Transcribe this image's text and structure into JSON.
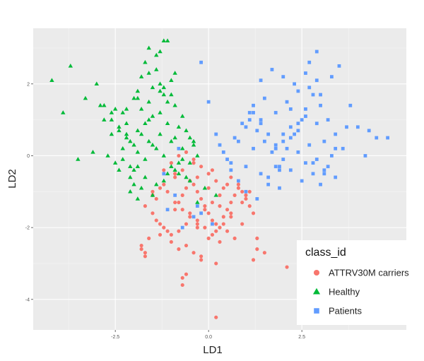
{
  "chart_data": {
    "type": "scatter",
    "xlabel": "LD1",
    "ylabel": "LD2",
    "xlim": [
      -4.7,
      5.3
    ],
    "ylim": [
      -4.85,
      3.55
    ],
    "xticks": [
      {
        "value": -2.5,
        "label": "-2.5"
      },
      {
        "value": 0,
        "label": "0.0"
      },
      {
        "value": 2.5,
        "label": "2.5"
      }
    ],
    "yticks": [
      {
        "value": -4,
        "label": "-4"
      },
      {
        "value": -2,
        "label": "-2"
      },
      {
        "value": 0,
        "label": "0"
      },
      {
        "value": 2,
        "label": "2"
      }
    ],
    "grid": true,
    "legend": {
      "title": "class_id",
      "position": "bottom-right"
    },
    "series": [
      {
        "name": "ATTRV30M carriers",
        "marker": "circle",
        "color": "#F8766D",
        "x": [
          -1.8,
          -1.7,
          -1.6,
          -1.7,
          -1.5,
          -1.4,
          -1.3,
          -1.2,
          -1.1,
          -1.0,
          -0.9,
          -0.8,
          -0.7,
          -0.6,
          -0.5,
          -0.4,
          -0.3,
          -0.2,
          -0.1,
          0.0,
          0.1,
          0.2,
          0.3,
          0.4,
          0.5,
          0.6,
          0.7,
          0.8,
          0.9,
          1.0,
          1.1,
          1.2,
          -1.2,
          -1.0,
          -0.8,
          -0.6,
          -0.4,
          -0.2,
          0.0,
          0.2,
          0.4,
          0.6,
          0.8,
          1.0,
          -1.4,
          -1.1,
          -0.9,
          -0.7,
          -0.5,
          -0.3,
          -0.1,
          0.1,
          0.3,
          0.5,
          0.7,
          0.9,
          -1.3,
          -1.0,
          -0.8,
          -0.6,
          -0.4,
          -0.2,
          0.0,
          0.2,
          0.4,
          0.6,
          -1.5,
          -1.2,
          -0.9,
          -0.7,
          -0.5,
          -0.3,
          -0.1,
          0.1,
          0.3,
          -0.8,
          -0.6,
          -0.3,
          0.0,
          0.3,
          0.6,
          -0.6,
          -0.2,
          0.2,
          1.3,
          1.5,
          1.3,
          1.2,
          2.1,
          -1.7,
          -1.8,
          -0.7,
          -0.7,
          -0.3,
          0.2,
          -1.5,
          -1.3,
          -0.9,
          -0.4,
          0.1,
          0.5,
          0.9,
          1.1
        ],
        "y": [
          -2.5,
          -2.7,
          -2.3,
          -1.4,
          -1.6,
          -1.8,
          -1.9,
          -2.0,
          -2.1,
          -2.2,
          -1.5,
          -1.3,
          -1.1,
          -0.9,
          -0.7,
          -0.8,
          -1.0,
          -1.2,
          -1.4,
          -1.6,
          -1.8,
          -1.9,
          -2.0,
          -1.7,
          -1.5,
          -1.3,
          -1.1,
          -0.9,
          -1.0,
          -1.2,
          -1.4,
          -1.6,
          -0.4,
          -0.2,
          0.0,
          0.1,
          -0.1,
          -0.3,
          -0.5,
          -0.7,
          -0.9,
          -0.6,
          -0.8,
          -1.1,
          -1.2,
          -1.0,
          -0.6,
          -0.4,
          -1.6,
          -1.8,
          -2.0,
          -2.2,
          -2.4,
          -2.1,
          -2.3,
          -1.9,
          -2.2,
          -2.4,
          -2.6,
          -2.5,
          -2.7,
          -2.8,
          -2.3,
          -2.1,
          -1.9,
          -1.7,
          -1.0,
          -0.8,
          -1.3,
          -1.5,
          -1.7,
          -1.9,
          -1.5,
          -1.3,
          -1.1,
          -2.1,
          -1.9,
          -0.6,
          -0.9,
          -1.4,
          -1.6,
          -3.3,
          -2.9,
          -3.0,
          -2.6,
          -2.7,
          -2.3,
          -2.9,
          -3.1,
          -2.8,
          -2.6,
          -3.4,
          -3.6,
          -2.0,
          -4.5,
          -1.1,
          -0.9,
          -0.5,
          -0.2,
          -0.4,
          -0.8,
          -1.3,
          -1.0
        ]
      },
      {
        "name": "Healthy",
        "marker": "triangle",
        "color": "#00BA38",
        "x": [
          -4.2,
          -3.9,
          -3.7,
          -3.5,
          -3.3,
          -3.0,
          -2.8,
          -2.6,
          -2.4,
          -2.3,
          -2.2,
          -2.1,
          -2.0,
          -1.9,
          -1.8,
          -1.7,
          -1.6,
          -1.5,
          -1.4,
          -1.3,
          -1.2,
          -1.1,
          -1.0,
          -0.9,
          -0.8,
          -0.7,
          -0.6,
          -0.5,
          -0.4,
          -0.3,
          -2.7,
          -2.5,
          -2.3,
          -2.1,
          -1.9,
          -1.7,
          -1.5,
          -1.3,
          -1.1,
          -0.9,
          -0.7,
          -0.5,
          -3.1,
          -2.9,
          -2.6,
          -2.4,
          -2.2,
          -2.0,
          -1.8,
          -1.6,
          -1.4,
          -1.2,
          -1.0,
          -0.8,
          -2.8,
          -2.5,
          -2.2,
          -1.9,
          -1.6,
          -1.3,
          -1.0,
          -0.7,
          -0.4,
          -2.6,
          -2.3,
          -2.0,
          -1.7,
          -1.4,
          -1.1,
          -0.8,
          -2.4,
          -2.1,
          -1.8,
          -1.5,
          -1.2,
          -0.9,
          -0.6,
          -2.2,
          -1.9,
          -1.6,
          -1.3,
          -1.0,
          -1.8,
          -1.5,
          -1.2,
          -0.9,
          -1.7,
          -1.4,
          -1.1,
          -1.3,
          -1.2,
          -1.6,
          -0.1,
          0.2,
          -0.3,
          -0.5,
          -1.9,
          -2.0,
          -2.1,
          -1.9
        ],
        "y": [
          2.1,
          1.2,
          2.5,
          -0.1,
          1.6,
          2.0,
          1.4,
          1.0,
          0.8,
          1.2,
          0.6,
          0.4,
          1.6,
          1.8,
          1.3,
          0.9,
          2.3,
          1.1,
          2.4,
          2.0,
          1.9,
          1.5,
          1.7,
          1.4,
          0.8,
          1.1,
          0.7,
          0.5,
          0.3,
          0.0,
          0.0,
          -0.2,
          0.2,
          -0.3,
          0.1,
          -0.1,
          0.3,
          0.6,
          0.9,
          0.5,
          0.2,
          -0.2,
          0.1,
          1.4,
          1.2,
          0.7,
          0.5,
          0.3,
          0.6,
          0.4,
          0.2,
          0.0,
          -0.3,
          -0.5,
          1.0,
          1.3,
          0.9,
          0.7,
          1.0,
          1.2,
          0.4,
          -0.1,
          0.4,
          0.6,
          -0.1,
          -0.4,
          -0.6,
          -0.8,
          -0.5,
          -0.2,
          -0.4,
          -0.6,
          -0.9,
          -1.1,
          -0.7,
          -0.4,
          -0.6,
          1.3,
          1.6,
          1.5,
          1.8,
          2.1,
          2.2,
          1.9,
          1.7,
          2.3,
          2.6,
          2.8,
          3.2,
          2.9,
          3.2,
          3.0,
          -0.9,
          -1.1,
          -1.3,
          -0.7,
          -1.2,
          -0.8,
          -1.0,
          -0.3
        ]
      },
      {
        "name": "Patients",
        "marker": "square",
        "color": "#619CFF",
        "x": [
          -0.2,
          0.0,
          0.2,
          0.4,
          0.6,
          0.8,
          1.0,
          1.2,
          1.4,
          1.6,
          1.8,
          2.0,
          2.2,
          2.4,
          2.6,
          2.8,
          3.0,
          3.2,
          3.4,
          3.6,
          0.3,
          0.5,
          0.7,
          0.9,
          1.1,
          1.3,
          1.5,
          1.7,
          1.9,
          2.1,
          2.3,
          2.5,
          2.7,
          2.9,
          3.1,
          3.3,
          0.6,
          0.8,
          1.0,
          1.2,
          1.4,
          1.6,
          1.8,
          2.0,
          2.2,
          2.4,
          2.6,
          2.8,
          3.0,
          3.2,
          1.0,
          1.3,
          1.6,
          1.9,
          2.2,
          2.5,
          2.8,
          3.1,
          3.4,
          1.2,
          1.5,
          1.8,
          2.1,
          2.4,
          2.7,
          3.0,
          1.4,
          1.7,
          2.0,
          2.3,
          2.6,
          2.9,
          2.7,
          2.9,
          3.3,
          3.5,
          3.8,
          4.0,
          4.3,
          4.5,
          4.8,
          4.2,
          3.7,
          -0.8,
          -0.9,
          -0.7,
          -0.3,
          -0.2,
          0.1,
          -0.4,
          -1.1,
          -1.2,
          1.1,
          1.4,
          1.8,
          2.4,
          2.6,
          3.1,
          2.9,
          3.4,
          1.9,
          2.0,
          2.2
        ],
        "y": [
          2.6,
          1.5,
          0.6,
          0.1,
          -0.2,
          0.4,
          0.8,
          1.2,
          1.0,
          0.6,
          0.2,
          -0.1,
          0.5,
          0.9,
          1.3,
          1.7,
          1.4,
          1.0,
          0.6,
          0.2,
          0.3,
          -0.1,
          0.5,
          0.9,
          1.2,
          0.7,
          0.4,
          0.1,
          -0.3,
          0.2,
          0.6,
          1.0,
          0.3,
          -0.1,
          -0.4,
          0.0,
          -0.4,
          -0.7,
          -0.3,
          0.2,
          -0.5,
          -0.8,
          -0.3,
          0.4,
          0.8,
          0.1,
          -0.2,
          -0.5,
          -0.8,
          -0.3,
          -1.0,
          -1.2,
          -0.6,
          -0.9,
          -0.4,
          -0.7,
          -0.2,
          -0.5,
          0.2,
          1.4,
          1.6,
          1.2,
          1.5,
          1.8,
          1.9,
          1.7,
          2.1,
          2.4,
          2.2,
          2.0,
          2.3,
          2.9,
          2.6,
          2.1,
          2.2,
          2.5,
          1.4,
          0.8,
          0.7,
          0.5,
          0.5,
          0.0,
          0.8,
          0.2,
          -1.1,
          -2.0,
          -1.4,
          -1.6,
          -1.9,
          -1.7,
          -1.5,
          -0.5,
          1.0,
          0.9,
          0.3,
          0.7,
          1.1,
          0.4,
          0.9,
          -0.6,
          -0.4,
          0.6,
          1.3
        ]
      }
    ]
  }
}
